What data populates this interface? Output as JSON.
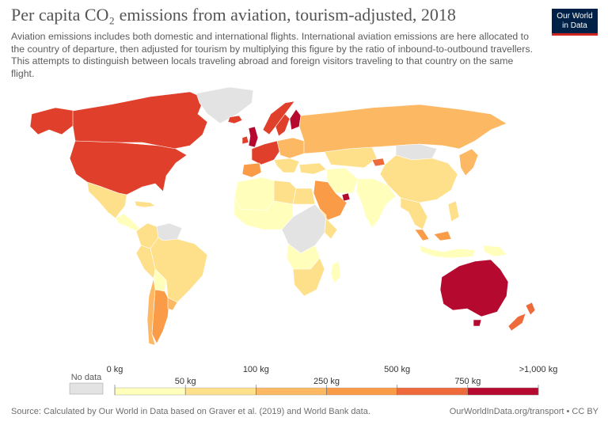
{
  "header": {
    "title": "Per capita CO₂ emissions from aviation, tourism-adjusted, 2018",
    "subtitle": "Aviation emissions includes both domestic and international flights. International aviation emissions are here allocated to the country of departure, then adjusted for tourism by multiplying this figure by the ratio of inbound-to-outbound travellers. This attempts to distinguish between locals traveling abroad and foreign visitors traveling to that country on the same flight."
  },
  "logo": {
    "line1": "Our World",
    "line2": "in Data"
  },
  "legend": {
    "no_data_label": "No data",
    "no_data_color": "#e3e3e3",
    "bins": [
      {
        "color": "#ffffbb",
        "top_label": "0 kg",
        "bottom_label": ""
      },
      {
        "color": "#fee08b",
        "top_label": "",
        "bottom_label": "50 kg"
      },
      {
        "color": "#fdb863",
        "top_label": "100 kg",
        "bottom_label": ""
      },
      {
        "color": "#f99b47",
        "top_label": "",
        "bottom_label": "250 kg"
      },
      {
        "color": "#ef6a3a",
        "top_label": "500 kg",
        "bottom_label": ""
      },
      {
        "color": "#e0402b",
        "top_label": "",
        "bottom_label": "750 kg"
      },
      {
        "color": "#b5092f",
        "top_label": ">1,000 kg",
        "bottom_label": ""
      }
    ]
  },
  "regions": [
    {
      "name": "canada",
      "color": "#e0402b"
    },
    {
      "name": "united-states",
      "color": "#e0402b"
    },
    {
      "name": "alaska",
      "color": "#e0402b"
    },
    {
      "name": "greenland",
      "color": "#e3e3e3"
    },
    {
      "name": "iceland",
      "color": "#e0402b"
    },
    {
      "name": "mexico",
      "color": "#fee08b"
    },
    {
      "name": "central-america",
      "color": "#ffffbb"
    },
    {
      "name": "caribbean",
      "color": "#fee08b"
    },
    {
      "name": "colombia",
      "color": "#fee08b"
    },
    {
      "name": "venezuela",
      "color": "#e3e3e3"
    },
    {
      "name": "brazil",
      "color": "#fee08b"
    },
    {
      "name": "peru",
      "color": "#fee08b"
    },
    {
      "name": "bolivia",
      "color": "#ffffbb"
    },
    {
      "name": "chile",
      "color": "#fdb863"
    },
    {
      "name": "argentina",
      "color": "#f99b47"
    },
    {
      "name": "uruguay",
      "color": "#fdb863"
    },
    {
      "name": "united-kingdom",
      "color": "#b5092f"
    },
    {
      "name": "ireland",
      "color": "#e0402b"
    },
    {
      "name": "norway",
      "color": "#e0402b"
    },
    {
      "name": "sweden",
      "color": "#e0402b"
    },
    {
      "name": "finland",
      "color": "#b5092f"
    },
    {
      "name": "western-europe",
      "color": "#e0402b"
    },
    {
      "name": "iberia",
      "color": "#f99b47"
    },
    {
      "name": "central-europe",
      "color": "#fdb863"
    },
    {
      "name": "balkans",
      "color": "#fee08b"
    },
    {
      "name": "russia",
      "color": "#fdb863"
    },
    {
      "name": "kazakhstan",
      "color": "#fee08b"
    },
    {
      "name": "kyrgyzstan",
      "color": "#ef6a3a"
    },
    {
      "name": "mongolia",
      "color": "#e3e3e3"
    },
    {
      "name": "china",
      "color": "#fee08b"
    },
    {
      "name": "korea-japan",
      "color": "#fdb863"
    },
    {
      "name": "turkey",
      "color": "#fee08b"
    },
    {
      "name": "iran",
      "color": "#ffffbb"
    },
    {
      "name": "arabian-peninsula",
      "color": "#f99b47"
    },
    {
      "name": "uae",
      "color": "#b5092f"
    },
    {
      "name": "india",
      "color": "#ffffbb"
    },
    {
      "name": "southeast-asia",
      "color": "#fee08b"
    },
    {
      "name": "malaysia",
      "color": "#f99b47"
    },
    {
      "name": "indonesia",
      "color": "#ffffbb"
    },
    {
      "name": "philippines",
      "color": "#fee08b"
    },
    {
      "name": "north-africa",
      "color": "#ffffbb"
    },
    {
      "name": "libya",
      "color": "#fee08b"
    },
    {
      "name": "egypt",
      "color": "#fee08b"
    },
    {
      "name": "west-africa",
      "color": "#ffffbb"
    },
    {
      "name": "central-africa",
      "color": "#e3e3e3"
    },
    {
      "name": "angola-zambia",
      "color": "#ffffbb"
    },
    {
      "name": "east-africa",
      "color": "#fee08b"
    },
    {
      "name": "southern-africa",
      "color": "#fee08b"
    },
    {
      "name": "madagascar",
      "color": "#ffffbb"
    },
    {
      "name": "australia",
      "color": "#b5092f"
    },
    {
      "name": "new-zealand",
      "color": "#ef6a3a"
    },
    {
      "name": "papua-new-guinea",
      "color": "#ffffbb"
    }
  ],
  "footer": {
    "source": "Source: Calculated by Our World in Data based on Graver et al. (2019) and World Bank data.",
    "credit": "OurWorldInData.org/transport • CC BY"
  }
}
